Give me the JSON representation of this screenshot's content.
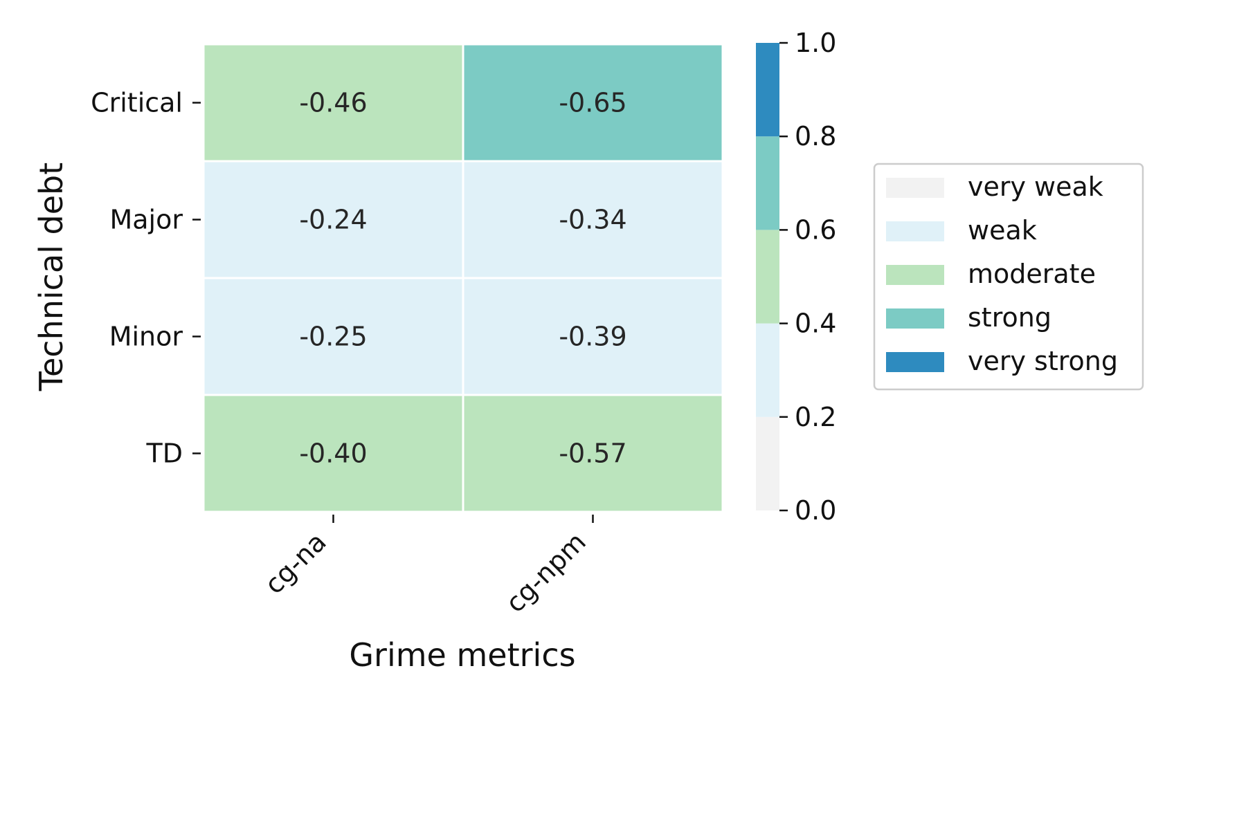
{
  "chart_data": {
    "type": "heatmap",
    "title": "",
    "xlabel": "Grime metrics",
    "ylabel": "Technical debt",
    "x_categories": [
      "cg-na",
      "cg-npm"
    ],
    "y_categories": [
      "Critical",
      "Major",
      "Minor",
      "TD"
    ],
    "values": [
      [
        -0.46,
        -0.65
      ],
      [
        -0.24,
        -0.34
      ],
      [
        -0.25,
        -0.39
      ],
      [
        -0.4,
        -0.57
      ]
    ],
    "value_labels": [
      [
        "-0.46",
        "-0.65"
      ],
      [
        "-0.24",
        "-0.34"
      ],
      [
        "-0.25",
        "-0.39"
      ],
      [
        "-0.40",
        "-0.57"
      ]
    ],
    "color_by": "absolute value",
    "colorbar": {
      "range": [
        0.0,
        1.0
      ],
      "ticks": [
        0.0,
        0.2,
        0.4,
        0.6,
        0.8,
        1.0
      ],
      "tick_labels": [
        "0.0",
        "0.2",
        "0.4",
        "0.6",
        "0.8",
        "1.0"
      ],
      "bands": [
        {
          "from": 0.0,
          "to": 0.2,
          "color": "#f2f2f2"
        },
        {
          "from": 0.2,
          "to": 0.4,
          "color": "#e0f1f8"
        },
        {
          "from": 0.4,
          "to": 0.6,
          "color": "#bbe4bd"
        },
        {
          "from": 0.6,
          "to": 0.8,
          "color": "#7ccbc4"
        },
        {
          "from": 0.8,
          "to": 1.0,
          "color": "#2e8bbf"
        }
      ]
    },
    "legend": {
      "placement": "right",
      "entries": [
        {
          "label": "very weak",
          "color": "#f2f2f2"
        },
        {
          "label": "weak",
          "color": "#e0f1f8"
        },
        {
          "label": "moderate",
          "color": "#bbe4bd"
        },
        {
          "label": "strong",
          "color": "#7ccbc4"
        },
        {
          "label": "very strong",
          "color": "#2e8bbf"
        }
      ]
    },
    "grid": false
  }
}
